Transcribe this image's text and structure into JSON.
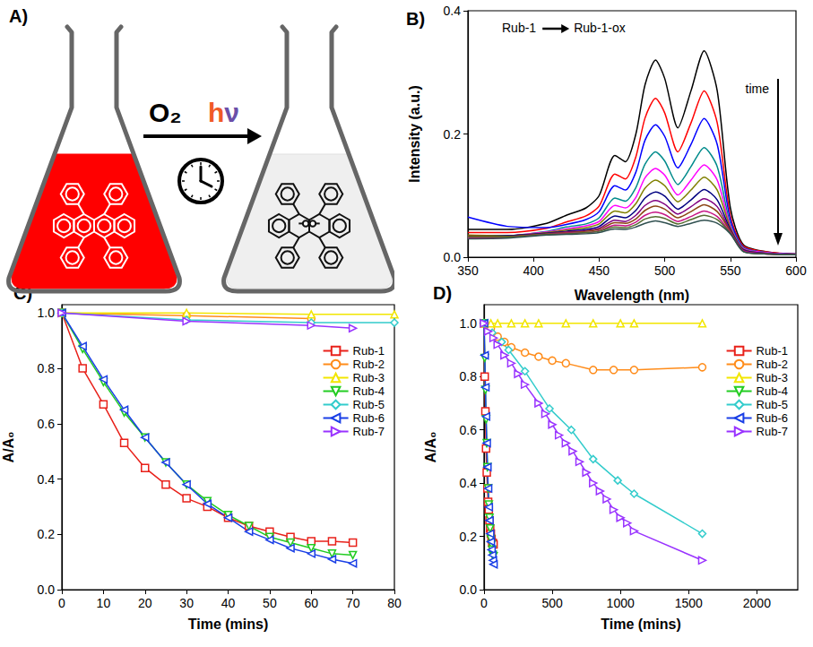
{
  "diagram": {
    "panel": "A)",
    "reagent": "O₂",
    "light": "hν"
  },
  "chart_data": [
    {
      "panel": "B)",
      "type": "line",
      "xlabel": "Wavelength (nm)",
      "ylabel": "Intensity (a.u.)",
      "annotations": [
        "Rub-1",
        "Rub-1-ox",
        "time"
      ],
      "xlim": [
        350,
        600
      ],
      "xticks": [
        350,
        400,
        450,
        500,
        550,
        600
      ],
      "ylim": [
        0,
        0.4
      ],
      "yticks": [
        {
          "value": 0,
          "label": "0.0"
        },
        0.2,
        0.4
      ],
      "grid": false,
      "x": [
        350,
        380,
        410,
        425,
        440,
        450,
        462,
        470,
        478,
        485,
        493,
        500,
        510,
        520,
        530,
        540,
        550,
        560,
        580,
        600
      ],
      "series": [
        {
          "color": "#000000",
          "values": [
            0.045,
            0.045,
            0.055,
            0.068,
            0.08,
            0.1,
            0.165,
            0.155,
            0.2,
            0.28,
            0.32,
            0.29,
            0.21,
            0.27,
            0.335,
            0.27,
            0.08,
            0.02,
            0.008,
            0.005
          ]
        },
        {
          "color": "#ff0000",
          "values": [
            0.04,
            0.04,
            0.047,
            0.057,
            0.067,
            0.083,
            0.135,
            0.127,
            0.163,
            0.226,
            0.258,
            0.234,
            0.171,
            0.218,
            0.27,
            0.218,
            0.067,
            0.018,
            0.008,
            0.005
          ]
        },
        {
          "color": "#0000ff",
          "values": [
            0.065,
            0.05,
            0.048,
            0.053,
            0.061,
            0.074,
            0.116,
            0.109,
            0.138,
            0.19,
            0.215,
            0.196,
            0.145,
            0.183,
            0.225,
            0.183,
            0.061,
            0.016,
            0.007,
            0.005
          ]
        },
        {
          "color": "#008b8b",
          "values": [
            0.035,
            0.035,
            0.042,
            0.049,
            0.054,
            0.064,
            0.096,
            0.091,
            0.113,
            0.151,
            0.171,
            0.156,
            0.118,
            0.147,
            0.178,
            0.147,
            0.054,
            0.015,
            0.007,
            0.004
          ]
        },
        {
          "color": "#ff00ff",
          "values": [
            0.033,
            0.034,
            0.041,
            0.046,
            0.051,
            0.058,
            0.084,
            0.08,
            0.097,
            0.129,
            0.144,
            0.133,
            0.101,
            0.125,
            0.15,
            0.125,
            0.051,
            0.014,
            0.007,
            0.004
          ]
        },
        {
          "color": "#808000",
          "values": [
            0.036,
            0.035,
            0.04,
            0.044,
            0.048,
            0.054,
            0.075,
            0.072,
            0.087,
            0.112,
            0.125,
            0.116,
            0.09,
            0.109,
            0.13,
            0.109,
            0.048,
            0.013,
            0.006,
            0.004
          ]
        },
        {
          "color": "#000080",
          "values": [
            0.034,
            0.035,
            0.039,
            0.042,
            0.045,
            0.05,
            0.067,
            0.064,
            0.076,
            0.096,
            0.106,
            0.099,
            0.078,
            0.093,
            0.11,
            0.093,
            0.045,
            0.012,
            0.006,
            0.004
          ]
        },
        {
          "color": "#800080",
          "values": [
            0.032,
            0.033,
            0.038,
            0.041,
            0.043,
            0.047,
            0.06,
            0.058,
            0.068,
            0.084,
            0.092,
            0.086,
            0.07,
            0.082,
            0.095,
            0.082,
            0.043,
            0.011,
            0.006,
            0.004
          ]
        },
        {
          "color": "#8b4513",
          "values": [
            0.035,
            0.034,
            0.038,
            0.04,
            0.042,
            0.045,
            0.056,
            0.055,
            0.062,
            0.076,
            0.083,
            0.078,
            0.064,
            0.074,
            0.085,
            0.074,
            0.042,
            0.01,
            0.005,
            0.004
          ]
        },
        {
          "color": "#c71585",
          "values": [
            0.031,
            0.032,
            0.037,
            0.039,
            0.04,
            0.043,
            0.052,
            0.051,
            0.057,
            0.068,
            0.073,
            0.069,
            0.058,
            0.066,
            0.075,
            0.066,
            0.04,
            0.01,
            0.005,
            0.004
          ]
        },
        {
          "color": "#556b2f",
          "values": [
            0.033,
            0.033,
            0.037,
            0.038,
            0.04,
            0.042,
            0.049,
            0.048,
            0.053,
            0.062,
            0.066,
            0.063,
            0.054,
            0.061,
            0.068,
            0.061,
            0.039,
            0.009,
            0.005,
            0.004
          ]
        },
        {
          "color": "#2f4f4f",
          "values": [
            0.03,
            0.031,
            0.036,
            0.037,
            0.038,
            0.04,
            0.046,
            0.045,
            0.049,
            0.055,
            0.059,
            0.056,
            0.05,
            0.055,
            0.06,
            0.055,
            0.038,
            0.009,
            0.005,
            0.004
          ]
        }
      ]
    },
    {
      "panel": "C)",
      "type": "line",
      "xlabel": "Time (mins)",
      "ylabel": "A/A₀",
      "xlim": [
        0,
        80
      ],
      "xticks": [
        0,
        10,
        20,
        30,
        40,
        50,
        60,
        70,
        80
      ],
      "ylim": [
        0,
        1.03
      ],
      "yticks": [
        {
          "value": 0,
          "label": "0.0"
        },
        0.2,
        0.4,
        0.6,
        0.8,
        {
          "value": 1,
          "label": "1.0"
        }
      ],
      "grid": false,
      "legend": "upper right",
      "series": [
        {
          "name": "Rub-1",
          "color": "#e8211a",
          "marker": "square",
          "x": [
            0,
            5,
            10,
            15,
            20,
            25,
            30,
            35,
            40,
            45,
            50,
            55,
            60,
            65,
            70
          ],
          "values": [
            1.0,
            0.8,
            0.67,
            0.53,
            0.44,
            0.38,
            0.33,
            0.3,
            0.26,
            0.23,
            0.21,
            0.19,
            0.175,
            0.175,
            0.17
          ]
        },
        {
          "name": "Rub-2",
          "color": "#ff8c1a",
          "marker": "circle",
          "x": [
            0,
            30,
            60
          ],
          "values": [
            1.0,
            0.99,
            0.98
          ]
        },
        {
          "name": "Rub-3",
          "color": "#f2e600",
          "marker": "triangle-up",
          "x": [
            0,
            30,
            60,
            80
          ],
          "values": [
            1.0,
            1.0,
            0.995,
            0.995
          ]
        },
        {
          "name": "Rub-4",
          "color": "#22cc22",
          "marker": "triangle-down",
          "x": [
            0,
            5,
            10,
            15,
            20,
            25,
            30,
            35,
            40,
            45,
            50,
            55,
            60,
            65,
            70
          ],
          "values": [
            1.0,
            0.87,
            0.75,
            0.64,
            0.55,
            0.46,
            0.38,
            0.32,
            0.27,
            0.23,
            0.19,
            0.17,
            0.15,
            0.13,
            0.125
          ]
        },
        {
          "name": "Rub-5",
          "color": "#33cccc",
          "marker": "diamond",
          "x": [
            0,
            30,
            60,
            80
          ],
          "values": [
            1.0,
            0.975,
            0.965,
            0.965
          ]
        },
        {
          "name": "Rub-6",
          "color": "#1a3fe6",
          "marker": "triangle-left",
          "x": [
            0,
            5,
            10,
            15,
            20,
            25,
            30,
            35,
            40,
            45,
            50,
            55,
            60,
            65,
            70
          ],
          "values": [
            1.0,
            0.88,
            0.76,
            0.65,
            0.55,
            0.46,
            0.38,
            0.31,
            0.26,
            0.21,
            0.18,
            0.15,
            0.13,
            0.11,
            0.095
          ]
        },
        {
          "name": "Rub-7",
          "color": "#9933ff",
          "marker": "triangle-right",
          "x": [
            0,
            30,
            60,
            70
          ],
          "values": [
            1.0,
            0.97,
            0.955,
            0.945
          ]
        }
      ]
    },
    {
      "panel": "D)",
      "type": "line",
      "xlabel": "Time (mins)",
      "ylabel": "A/A₀",
      "xlim": [
        0,
        2300
      ],
      "xticks": [
        0,
        500,
        1000,
        1500,
        2000
      ],
      "ylim": [
        0,
        1.07
      ],
      "yticks": [
        {
          "value": 0,
          "label": "0.0"
        },
        0.2,
        0.4,
        0.6,
        0.8,
        {
          "value": 1,
          "label": "1.0"
        }
      ],
      "grid": false,
      "legend": "upper right",
      "series": [
        {
          "name": "Rub-1",
          "color": "#e8211a",
          "marker": "square",
          "x": [
            0,
            5,
            10,
            15,
            20,
            25,
            30,
            35,
            40,
            45,
            50,
            55,
            60,
            65,
            70
          ],
          "values": [
            1.0,
            0.8,
            0.67,
            0.53,
            0.44,
            0.38,
            0.33,
            0.3,
            0.26,
            0.23,
            0.21,
            0.19,
            0.175,
            0.175,
            0.17
          ]
        },
        {
          "name": "Rub-2",
          "color": "#ff8c1a",
          "marker": "circle",
          "x": [
            0,
            50,
            100,
            150,
            200,
            300,
            400,
            500,
            600,
            800,
            950,
            1100,
            1600
          ],
          "values": [
            1.0,
            0.98,
            0.95,
            0.93,
            0.91,
            0.89,
            0.875,
            0.86,
            0.85,
            0.825,
            0.825,
            0.825,
            0.835
          ]
        },
        {
          "name": "Rub-3",
          "color": "#f2e600",
          "marker": "triangle-up",
          "x": [
            0,
            50,
            100,
            200,
            300,
            400,
            600,
            800,
            1000,
            1100,
            1600
          ],
          "values": [
            1.0,
            1.0,
            1.0,
            1.0,
            1.0,
            1.0,
            1.0,
            1.0,
            1.0,
            1.0,
            1.0
          ]
        },
        {
          "name": "Rub-4",
          "color": "#22cc22",
          "marker": "triangle-down",
          "x": [
            0,
            5,
            10,
            15,
            20,
            25,
            30,
            35,
            40,
            45,
            50,
            55,
            60,
            65,
            70
          ],
          "values": [
            1.0,
            0.87,
            0.75,
            0.64,
            0.55,
            0.46,
            0.38,
            0.32,
            0.27,
            0.23,
            0.19,
            0.17,
            0.15,
            0.13,
            0.125
          ]
        },
        {
          "name": "Rub-5",
          "color": "#33cccc",
          "marker": "diamond",
          "x": [
            0,
            60,
            130,
            180,
            300,
            480,
            640,
            800,
            980,
            1100,
            1600
          ],
          "values": [
            1.0,
            0.965,
            0.93,
            0.9,
            0.82,
            0.68,
            0.6,
            0.49,
            0.41,
            0.36,
            0.21
          ]
        },
        {
          "name": "Rub-6",
          "color": "#1a3fe6",
          "marker": "triangle-left",
          "x": [
            0,
            5,
            10,
            15,
            20,
            25,
            30,
            35,
            40,
            45,
            50,
            55,
            60,
            65,
            70
          ],
          "values": [
            1.0,
            0.88,
            0.76,
            0.65,
            0.55,
            0.46,
            0.38,
            0.31,
            0.26,
            0.21,
            0.18,
            0.15,
            0.13,
            0.11,
            0.095
          ]
        },
        {
          "name": "Rub-7",
          "color": "#9933ff",
          "marker": "triangle-right",
          "x": [
            0,
            30,
            70,
            100,
            150,
            200,
            250,
            300,
            400,
            450,
            500,
            550,
            600,
            650,
            700,
            750,
            800,
            850,
            900,
            950,
            1000,
            1050,
            1100,
            1600
          ],
          "values": [
            1.0,
            0.97,
            0.945,
            0.92,
            0.88,
            0.85,
            0.81,
            0.77,
            0.7,
            0.66,
            0.62,
            0.58,
            0.55,
            0.52,
            0.48,
            0.44,
            0.4,
            0.37,
            0.34,
            0.3,
            0.27,
            0.25,
            0.22,
            0.11
          ]
        }
      ]
    }
  ]
}
